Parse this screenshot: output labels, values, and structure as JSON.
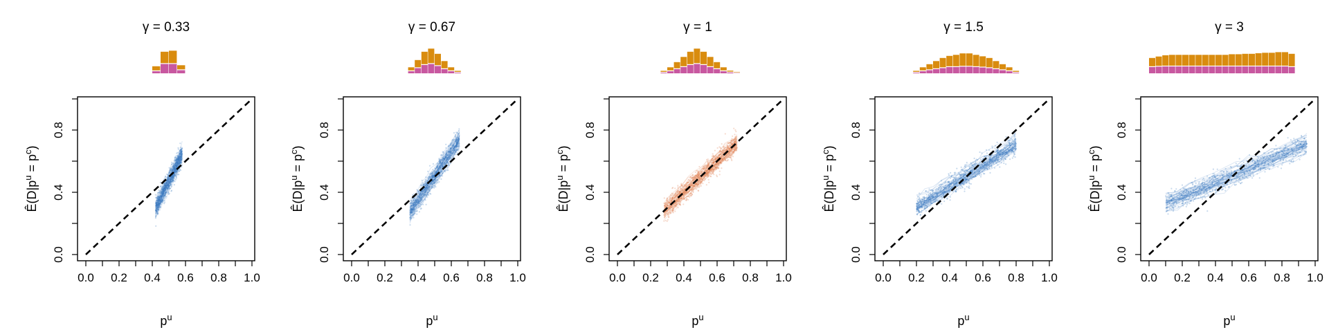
{
  "colors": {
    "hist_top": "#d98c0f",
    "hist_bottom": "#c858a0",
    "cloud_blue": "#3b7bc0",
    "cloud_orange": "#e07a4a",
    "diagonal": "#000000"
  },
  "chart_data": [
    {
      "type": "scatter",
      "title": "γ = 0.33",
      "xlabel": "p",
      "xlabel_sup": "u",
      "ylabel": "Ê(D|p",
      "ylabel_parts": [
        "Ê(D|p",
        "u",
        " = p",
        "c",
        ")"
      ],
      "xlim": [
        0,
        1
      ],
      "ylim": [
        0,
        1
      ],
      "x_ticks": [
        "0.0",
        "0.2",
        "0.4",
        "0.6",
        "0.8",
        "1.0"
      ],
      "y_ticks": [
        "0.0",
        "0.4",
        "0.8"
      ],
      "reference_line": "y = x (dashed)",
      "color": "blue",
      "x_range": [
        0.42,
        0.58
      ],
      "fit": {
        "slope": 2.2,
        "intercept": -0.63,
        "spread": 0.06
      },
      "histogram": {
        "bin_width": 0.05,
        "start": 0.4,
        "top": [
          0.2,
          0.55,
          0.6,
          0.2
        ],
        "bottom": [
          0.1,
          0.45,
          0.45,
          0.15
        ]
      }
    },
    {
      "type": "scatter",
      "title": "γ = 0.67",
      "xlabel": "p",
      "xlabel_sup": "u",
      "ylabel_parts": [
        "Ê(D|p",
        "u",
        " = p",
        "c",
        ")"
      ],
      "xlim": [
        0,
        1
      ],
      "ylim": [
        0,
        1
      ],
      "x_ticks": [
        "0.0",
        "0.2",
        "0.4",
        "0.6",
        "0.8",
        "1.0"
      ],
      "y_ticks": [
        "0.0",
        "0.4",
        "0.8"
      ],
      "reference_line": "y = x (dashed)",
      "color": "blue",
      "x_range": [
        0.35,
        0.65
      ],
      "fit": {
        "slope": 1.55,
        "intercept": -0.27,
        "spread": 0.06
      },
      "histogram": {
        "bin_width": 0.04,
        "start": 0.34,
        "top": [
          0.15,
          0.35,
          0.6,
          0.7,
          0.55,
          0.35,
          0.15,
          0.05
        ],
        "bottom": [
          0.1,
          0.25,
          0.4,
          0.45,
          0.35,
          0.2,
          0.1,
          0.03
        ]
      }
    },
    {
      "type": "scatter",
      "title": "γ = 1",
      "xlabel": "p",
      "xlabel_sup": "u",
      "ylabel_parts": [
        "Ê(D|p",
        "u",
        " = p",
        "c",
        ")"
      ],
      "xlim": [
        0,
        1
      ],
      "ylim": [
        0,
        1
      ],
      "x_ticks": [
        "0.0",
        "0.2",
        "0.4",
        "0.6",
        "0.8",
        "1.0"
      ],
      "y_ticks": [
        "0.0",
        "0.4",
        "0.8"
      ],
      "reference_line": "y = x (dashed)",
      "color": "orange",
      "x_range": [
        0.28,
        0.72
      ],
      "fit": {
        "slope": 1.0,
        "intercept": 0.0,
        "spread": 0.06
      },
      "histogram": {
        "bin_width": 0.04,
        "start": 0.26,
        "top": [
          0.05,
          0.15,
          0.3,
          0.45,
          0.6,
          0.7,
          0.6,
          0.45,
          0.3,
          0.15,
          0.05,
          0.02
        ],
        "bottom": [
          0.03,
          0.1,
          0.2,
          0.3,
          0.4,
          0.45,
          0.4,
          0.3,
          0.2,
          0.1,
          0.04,
          0.01
        ]
      }
    },
    {
      "type": "scatter",
      "title": "γ = 1.5",
      "xlabel": "p",
      "xlabel_sup": "u",
      "ylabel_parts": [
        "Ê(D|p",
        "u",
        " = p",
        "c",
        ")"
      ],
      "xlim": [
        0,
        1
      ],
      "ylim": [
        0,
        1
      ],
      "x_ticks": [
        "0.0",
        "0.2",
        "0.4",
        "0.6",
        "0.8",
        "1.0"
      ],
      "y_ticks": [
        "0.0",
        "0.4",
        "0.8"
      ],
      "reference_line": "y = x (dashed)",
      "color": "blue",
      "x_range": [
        0.2,
        0.8
      ],
      "fit": {
        "slope": 0.67,
        "intercept": 0.17,
        "spread": 0.06
      },
      "histogram": {
        "bin_width": 0.04,
        "start": 0.18,
        "top": [
          0.05,
          0.15,
          0.25,
          0.35,
          0.45,
          0.5,
          0.55,
          0.6,
          0.6,
          0.55,
          0.5,
          0.45,
          0.35,
          0.25,
          0.15,
          0.05
        ],
        "bottom": [
          0.03,
          0.1,
          0.15,
          0.2,
          0.25,
          0.3,
          0.3,
          0.32,
          0.32,
          0.3,
          0.28,
          0.25,
          0.2,
          0.15,
          0.1,
          0.03
        ]
      }
    },
    {
      "type": "scatter",
      "title": "γ = 3",
      "xlabel": "p",
      "xlabel_sup": "u",
      "ylabel_parts": [
        "Ê(D|p",
        "u",
        " = p",
        "c",
        ")"
      ],
      "xlim": [
        0,
        1
      ],
      "ylim": [
        0,
        1
      ],
      "x_ticks": [
        "0.0",
        "0.2",
        "0.4",
        "0.6",
        "0.8",
        "1.0"
      ],
      "y_ticks": [
        "0.0",
        "0.4",
        "0.8"
      ],
      "reference_line": "y = x (dashed)",
      "color": "blue",
      "x_range": [
        0.1,
        0.95
      ],
      "fit": {
        "slope": 0.45,
        "intercept": 0.28,
        "spread": 0.06
      },
      "histogram": {
        "bin_width": 0.04,
        "start": 0.0,
        "top": [
          0.4,
          0.45,
          0.5,
          0.52,
          0.52,
          0.52,
          0.52,
          0.52,
          0.52,
          0.52,
          0.52,
          0.52,
          0.55,
          0.55,
          0.57,
          0.57,
          0.6,
          0.62,
          0.62,
          0.65,
          0.65,
          0.6
        ],
        "bottom": [
          0.3,
          0.32,
          0.33,
          0.33,
          0.33,
          0.33,
          0.33,
          0.33,
          0.33,
          0.33,
          0.33,
          0.33,
          0.33,
          0.33,
          0.33,
          0.33,
          0.33,
          0.33,
          0.33,
          0.33,
          0.33,
          0.3
        ]
      }
    }
  ]
}
